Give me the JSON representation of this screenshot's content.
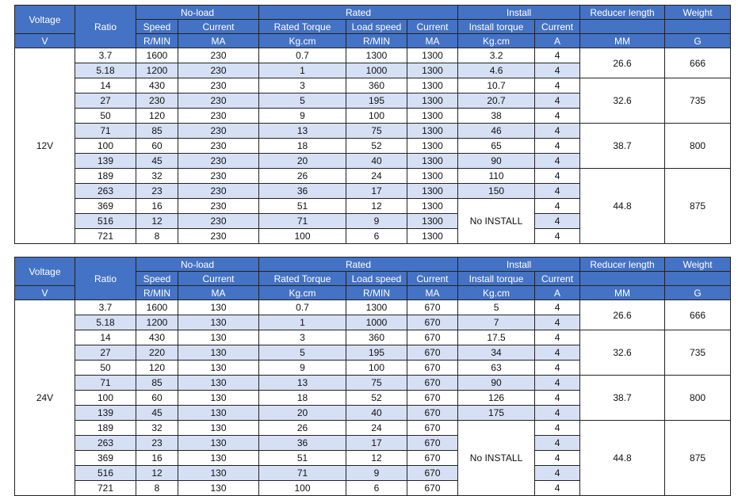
{
  "header": {
    "voltage": "Voltage",
    "ratio": "Ratio",
    "no_load": "No-load",
    "rated": "Rated",
    "install": "Install",
    "reducer_length": "Reducer length",
    "weight": "Weight",
    "sub": {
      "speed": "Speed",
      "current": "Current",
      "rated_torque": "Rated   Torque",
      "load_speed": "Load speed",
      "rated_current": "Current",
      "install_torque": "Install torque",
      "install_current": "Current"
    },
    "units": {
      "voltage": "V",
      "speed": "R/MIN",
      "current": "MA",
      "torque": "Kg.cm",
      "load_speed": "R/MIN",
      "rated_current": "MA",
      "install_torque": "Kg.cm",
      "install_current": "A",
      "length": "MM",
      "weight": "G"
    }
  },
  "tables": [
    {
      "voltage": "12V",
      "no_install": "No INSTALL",
      "groups": [
        {
          "length": "26.6",
          "weight": "666"
        },
        {
          "length": "32.6",
          "weight": "735"
        },
        {
          "length": "38.7",
          "weight": "800"
        },
        {
          "length": "44.8",
          "weight": "875"
        }
      ],
      "rows": [
        {
          "ratio": "3.7",
          "speed": "1600",
          "current": "230",
          "torque": "0.7",
          "load_speed": "1300",
          "rated_current": "1300",
          "install_torque": "3.2",
          "install_current": "4"
        },
        {
          "ratio": "5.18",
          "speed": "1200",
          "current": "230",
          "torque": "1",
          "load_speed": "1000",
          "rated_current": "1300",
          "install_torque": "4.6",
          "install_current": "4"
        },
        {
          "ratio": "14",
          "speed": "430",
          "current": "230",
          "torque": "3",
          "load_speed": "360",
          "rated_current": "1300",
          "install_torque": "10.7",
          "install_current": "4"
        },
        {
          "ratio": "27",
          "speed": "230",
          "current": "230",
          "torque": "5",
          "load_speed": "195",
          "rated_current": "1300",
          "install_torque": "20.7",
          "install_current": "4"
        },
        {
          "ratio": "50",
          "speed": "120",
          "current": "230",
          "torque": "9",
          "load_speed": "100",
          "rated_current": "1300",
          "install_torque": "38",
          "install_current": "4"
        },
        {
          "ratio": "71",
          "speed": "85",
          "current": "230",
          "torque": "13",
          "load_speed": "75",
          "rated_current": "1300",
          "install_torque": "46",
          "install_current": "4"
        },
        {
          "ratio": "100",
          "speed": "60",
          "current": "230",
          "torque": "18",
          "load_speed": "52",
          "rated_current": "1300",
          "install_torque": "65",
          "install_current": "4"
        },
        {
          "ratio": "139",
          "speed": "45",
          "current": "230",
          "torque": "20",
          "load_speed": "40",
          "rated_current": "1300",
          "install_torque": "90",
          "install_current": "4"
        },
        {
          "ratio": "189",
          "speed": "32",
          "current": "230",
          "torque": "26",
          "load_speed": "24",
          "rated_current": "1300",
          "install_torque": "110",
          "install_current": "4"
        },
        {
          "ratio": "263",
          "speed": "23",
          "current": "230",
          "torque": "36",
          "load_speed": "17",
          "rated_current": "1300",
          "install_torque": "150",
          "install_current": "4"
        },
        {
          "ratio": "369",
          "speed": "16",
          "current": "230",
          "torque": "51",
          "load_speed": "12",
          "rated_current": "1300",
          "install_torque": null,
          "install_current": "4"
        },
        {
          "ratio": "516",
          "speed": "12",
          "current": "230",
          "torque": "71",
          "load_speed": "9",
          "rated_current": "1300",
          "install_torque": null,
          "install_current": "4"
        },
        {
          "ratio": "721",
          "speed": "8",
          "current": "230",
          "torque": "100",
          "load_speed": "6",
          "rated_current": "1300",
          "install_torque": null,
          "install_current": "4"
        }
      ]
    },
    {
      "voltage": "24V",
      "no_install": "No INSTALL",
      "groups": [
        {
          "length": "26.6",
          "weight": "666"
        },
        {
          "length": "32.6",
          "weight": "735"
        },
        {
          "length": "38.7",
          "weight": "800"
        },
        {
          "length": "44.8",
          "weight": "875"
        }
      ],
      "rows": [
        {
          "ratio": "3.7",
          "speed": "1600",
          "current": "130",
          "torque": "0.7",
          "load_speed": "1300",
          "rated_current": "670",
          "install_torque": "5",
          "install_current": "4"
        },
        {
          "ratio": "5.18",
          "speed": "1200",
          "current": "130",
          "torque": "1",
          "load_speed": "1000",
          "rated_current": "670",
          "install_torque": "7",
          "install_current": "4"
        },
        {
          "ratio": "14",
          "speed": "430",
          "current": "130",
          "torque": "3",
          "load_speed": "360",
          "rated_current": "670",
          "install_torque": "17.5",
          "install_current": "4"
        },
        {
          "ratio": "27",
          "speed": "220",
          "current": "130",
          "torque": "5",
          "load_speed": "195",
          "rated_current": "670",
          "install_torque": "34",
          "install_current": "4"
        },
        {
          "ratio": "50",
          "speed": "120",
          "current": "130",
          "torque": "9",
          "load_speed": "100",
          "rated_current": "670",
          "install_torque": "63",
          "install_current": "4"
        },
        {
          "ratio": "71",
          "speed": "85",
          "current": "130",
          "torque": "13",
          "load_speed": "75",
          "rated_current": "670",
          "install_torque": "90",
          "install_current": "4"
        },
        {
          "ratio": "100",
          "speed": "60",
          "current": "130",
          "torque": "18",
          "load_speed": "52",
          "rated_current": "670",
          "install_torque": "126",
          "install_current": "4"
        },
        {
          "ratio": "139",
          "speed": "45",
          "current": "130",
          "torque": "20",
          "load_speed": "40",
          "rated_current": "670",
          "install_torque": "175",
          "install_current": "4"
        },
        {
          "ratio": "189",
          "speed": "32",
          "current": "130",
          "torque": "26",
          "load_speed": "24",
          "rated_current": "670",
          "install_torque": null,
          "install_current": "4"
        },
        {
          "ratio": "263",
          "speed": "23",
          "current": "130",
          "torque": "36",
          "load_speed": "17",
          "rated_current": "670",
          "install_torque": null,
          "install_current": "4"
        },
        {
          "ratio": "369",
          "speed": "16",
          "current": "130",
          "torque": "51",
          "load_speed": "12",
          "rated_current": "670",
          "install_torque": null,
          "install_current": "4"
        },
        {
          "ratio": "516",
          "speed": "12",
          "current": "130",
          "torque": "71",
          "load_speed": "9",
          "rated_current": "670",
          "install_torque": null,
          "install_current": "4"
        },
        {
          "ratio": "721",
          "speed": "8",
          "current": "130",
          "torque": "100",
          "load_speed": "6",
          "rated_current": "670",
          "install_torque": null,
          "install_current": "4"
        }
      ]
    }
  ],
  "colors": {
    "header_bg": "#4472c4",
    "header_text": "#ffffff",
    "stripe": "#d6e0f5"
  }
}
